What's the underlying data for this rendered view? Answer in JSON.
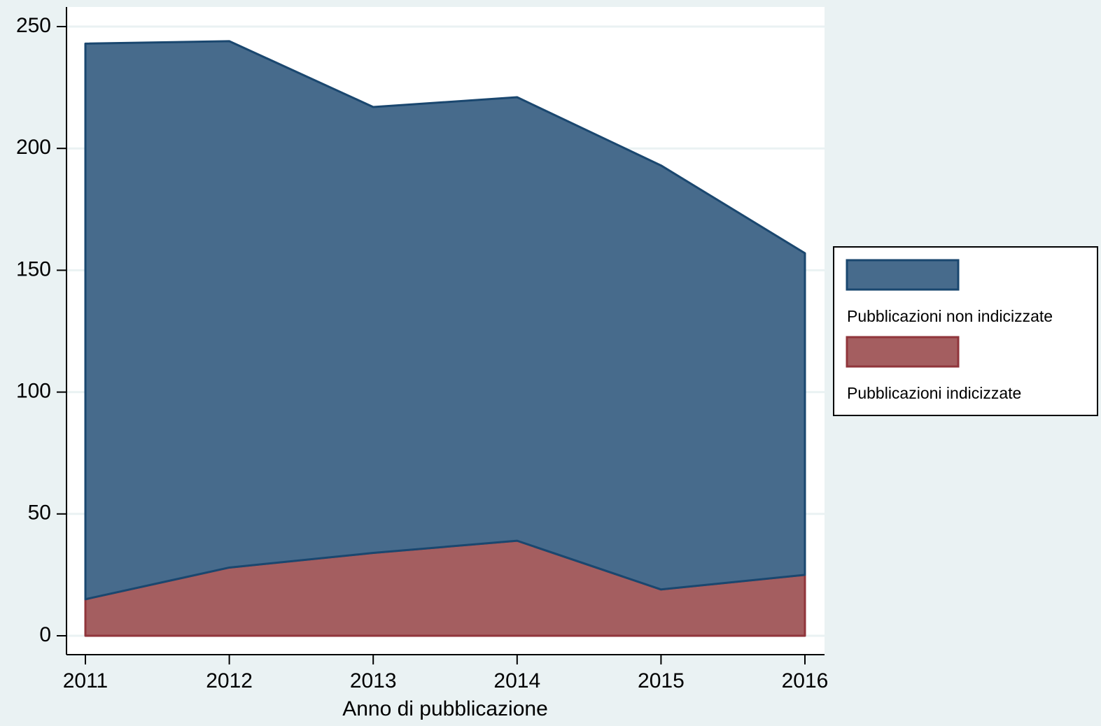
{
  "chart_data": {
    "type": "area",
    "stacked": true,
    "x_label": "Anno di pubblicazione",
    "categories": [
      "2011",
      "2012",
      "2013",
      "2014",
      "2015",
      "2016"
    ],
    "series": [
      {
        "name": "Pubblicazioni indicizzate",
        "color": "#a45e60",
        "edge": "#90353b",
        "values": [
          15,
          28,
          34,
          39,
          19,
          25
        ]
      },
      {
        "name": "Pubblicazioni non indicizzate",
        "color": "#476b8c",
        "edge": "#1a476f",
        "values": [
          228,
          216,
          183,
          182,
          174,
          132
        ]
      }
    ],
    "legend_order": [
      1,
      0
    ],
    "ylim": [
      0,
      250
    ],
    "yticks": [
      0,
      50,
      100,
      150,
      200,
      250
    ],
    "grid": true
  }
}
